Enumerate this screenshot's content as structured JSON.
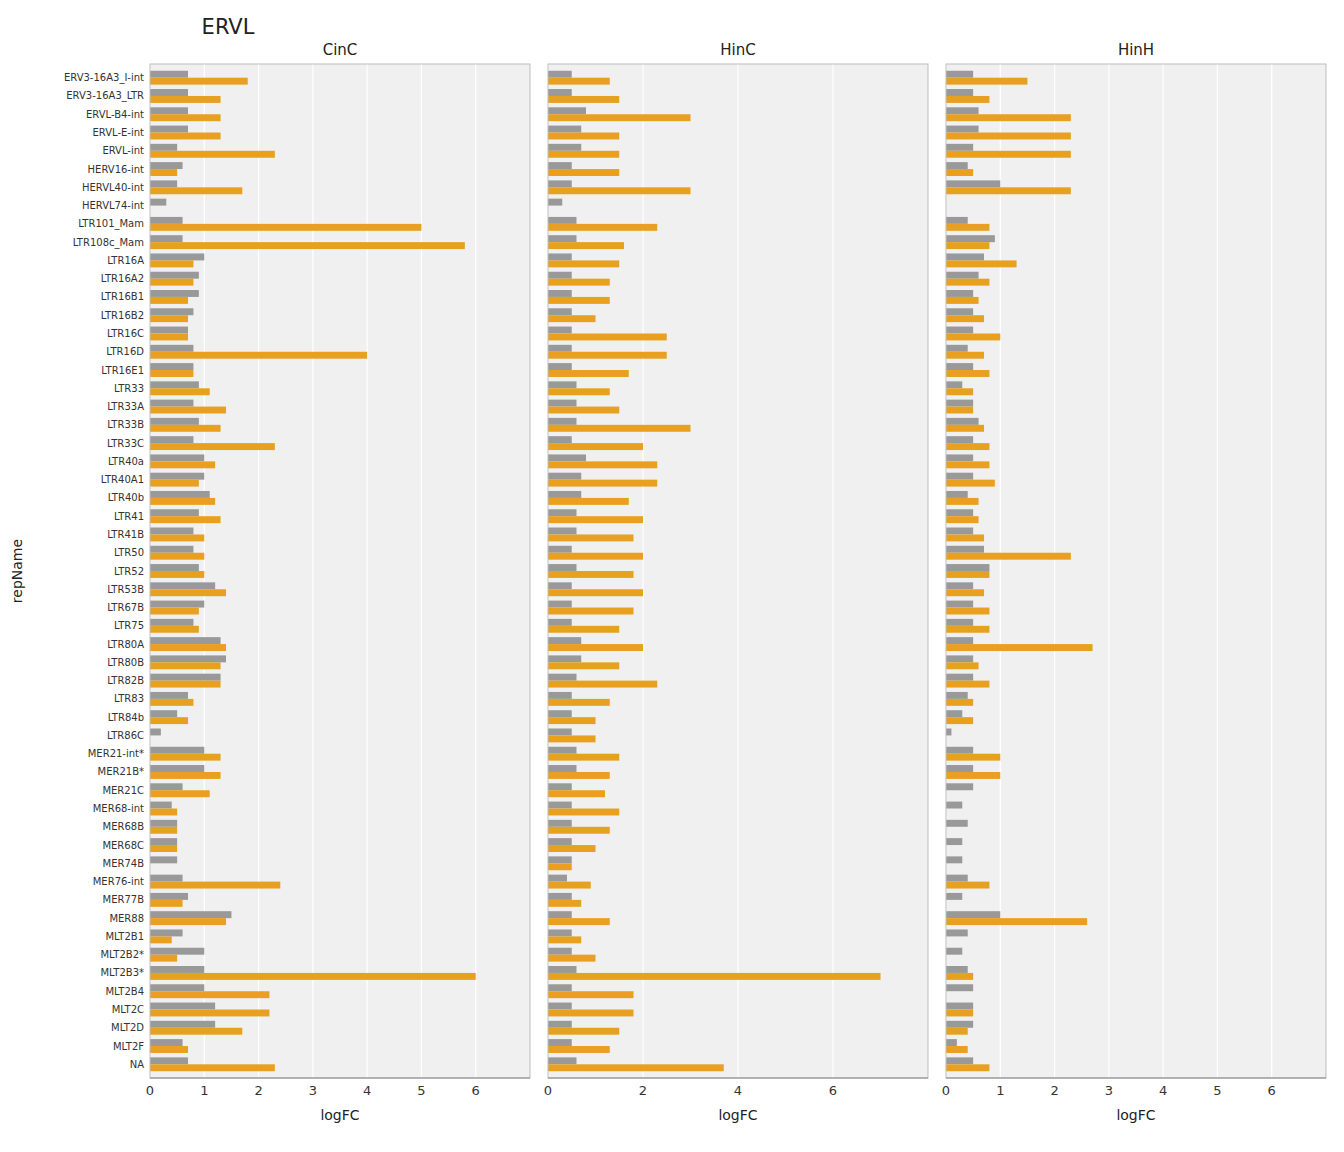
{
  "title": "ERVL",
  "chart_data": [
    {
      "type": "bar",
      "orientation": "horizontal",
      "title": "CinC",
      "x_label": "logFC",
      "y_label": "repName",
      "categories": [
        "NA",
        "MLT2F",
        "MLT2D",
        "MLT2C",
        "MLT2B4",
        "MLT2B3*",
        "MLT2B2*",
        "MLT2B1",
        "MER88",
        "MER77B",
        "MER76-int",
        "MER74B",
        "MER68C",
        "MER68B",
        "MER68-int",
        "MER21C",
        "MER21B*",
        "MER21-int*",
        "LTR86C",
        "LTR84b",
        "LTR83",
        "LTR82B",
        "LTR80B",
        "LTR80A",
        "LTR75",
        "LTR67B",
        "LTR53B",
        "LTR52",
        "LTR50",
        "LTR41B",
        "LTR41",
        "LTR40b",
        "LTR40A1",
        "LTR40a",
        "LTR33C",
        "LTR33B",
        "LTR33A",
        "LTR33",
        "LTR16E1",
        "LTR16D",
        "LTR16C",
        "LTR16B2",
        "LTR16B1",
        "LTR16A2",
        "LTR16A",
        "LTR108c_Mam",
        "LTR101_Mam",
        "HERVL74-int",
        "HERVL40-int",
        "HERV16-int",
        "ERVL-int",
        "ERVL-E-int",
        "ERVL-B4-int",
        "ERV3-16A3_LTR",
        "ERV3-16A3_I-int"
      ],
      "series": [
        {
          "color": "#999999",
          "values": [
            0.7,
            0.6,
            1.2,
            1.2,
            1.0,
            1.0,
            1.0,
            0.6,
            1.5,
            0.7,
            0.6,
            0.5,
            0.5,
            0.5,
            0.4,
            0.6,
            1.0,
            1.0,
            0.2,
            0.5,
            0.7,
            1.3,
            1.4,
            1.3,
            0.8,
            1.0,
            1.2,
            0.9,
            0.8,
            0.8,
            0.9,
            1.1,
            1.0,
            1.0,
            0.8,
            0.9,
            0.8,
            0.9,
            0.8,
            0.8,
            0.7,
            0.8,
            0.9,
            0.9,
            1.0,
            0.6,
            0.6,
            0.3,
            0.5,
            0.6,
            0.5,
            0.7,
            0.7,
            0.7,
            0.7
          ]
        },
        {
          "color": "#E8A020",
          "values": [
            2.3,
            0.7,
            1.7,
            2.2,
            2.2,
            6.0,
            0.5,
            0.4,
            1.4,
            0.6,
            2.4,
            0.0,
            0.5,
            0.5,
            0.5,
            1.1,
            1.3,
            1.3,
            0.0,
            0.7,
            0.8,
            1.3,
            1.3,
            1.4,
            0.9,
            0.9,
            1.4,
            1.0,
            1.0,
            1.0,
            1.3,
            1.2,
            0.9,
            1.2,
            2.3,
            1.3,
            1.4,
            1.1,
            0.8,
            4.0,
            0.7,
            0.7,
            0.7,
            0.8,
            0.8,
            5.8,
            5.0,
            0.0,
            1.7,
            0.5,
            2.3,
            1.3,
            1.3,
            1.3,
            1.8
          ]
        }
      ],
      "xlim": [
        0,
        7
      ],
      "xticks": [
        0,
        1,
        2,
        3,
        4,
        5,
        6
      ],
      "grid": true
    },
    {
      "type": "bar",
      "orientation": "horizontal",
      "title": "HinC",
      "x_label": "logFC",
      "tick_labels": "x",
      "categories": [
        "NA",
        "MLT2F",
        "MLT2D",
        "MLT2C",
        "MLT2B4",
        "MLT2B3*",
        "MLT2B2*",
        "MLT2B1",
        "MER88",
        "MER77B",
        "MER76-int",
        "MER74B",
        "MER68C",
        "MER68B",
        "MER68-int",
        "MER21C",
        "MER21B*",
        "MER21-int*",
        "LTR86C",
        "LTR84b",
        "LTR83",
        "LTR82B",
        "LTR80B",
        "LTR80A",
        "LTR75",
        "LTR67B",
        "LTR53B",
        "LTR52",
        "LTR50",
        "LTR41B",
        "LTR41",
        "LTR40b",
        "LTR40A1",
        "LTR40a",
        "LTR33C",
        "LTR33B",
        "LTR33A",
        "LTR33",
        "LTR16E1",
        "LTR16D",
        "LTR16C",
        "LTR16B2",
        "LTR16B1",
        "LTR16A2",
        "LTR16A",
        "LTR108c_Mam",
        "LTR101_Mam",
        "HERVL74-int",
        "HERVL40-int",
        "HERV16-int",
        "ERVL-int",
        "ERVL-E-int",
        "ERVL-B4-int",
        "ERV3-16A3_LTR",
        "ERV3-16A3_I-int"
      ],
      "series": [
        {
          "color": "#999999",
          "values": [
            0.6,
            0.5,
            0.5,
            0.5,
            0.5,
            0.6,
            0.5,
            0.5,
            0.5,
            0.5,
            0.4,
            0.5,
            0.5,
            0.5,
            0.5,
            0.5,
            0.6,
            0.6,
            0.5,
            0.5,
            0.5,
            0.6,
            0.7,
            0.7,
            0.5,
            0.5,
            0.5,
            0.6,
            0.5,
            0.6,
            0.6,
            0.7,
            0.7,
            0.8,
            0.5,
            0.6,
            0.6,
            0.6,
            0.5,
            0.5,
            0.5,
            0.5,
            0.5,
            0.5,
            0.5,
            0.6,
            0.6,
            0.3,
            0.5,
            0.5,
            0.7,
            0.7,
            0.8,
            0.5,
            0.5
          ]
        },
        {
          "color": "#E8A020",
          "values": [
            3.7,
            1.3,
            1.5,
            1.8,
            1.8,
            7.0,
            1.0,
            0.7,
            1.3,
            0.7,
            0.9,
            0.5,
            1.0,
            1.3,
            1.5,
            1.2,
            1.3,
            1.5,
            1.0,
            1.0,
            1.3,
            2.3,
            1.5,
            2.0,
            1.5,
            1.8,
            2.0,
            1.8,
            2.0,
            1.8,
            2.0,
            1.7,
            2.3,
            2.3,
            2.0,
            3.0,
            1.5,
            1.3,
            1.7,
            2.5,
            2.5,
            1.0,
            1.3,
            1.3,
            1.5,
            1.6,
            2.3,
            0.0,
            3.0,
            1.5,
            1.5,
            1.5,
            3.0,
            1.5,
            1.3
          ]
        }
      ],
      "xlim": [
        0,
        8
      ],
      "xticks": [
        0,
        2,
        4,
        6
      ],
      "grid": true
    },
    {
      "type": "bar",
      "orientation": "horizontal",
      "title": "HinH",
      "x_label": "logFC",
      "tick_labels": "x",
      "categories": [
        "NA",
        "MLT2F",
        "MLT2D",
        "MLT2C",
        "MLT2B4",
        "MLT2B3*",
        "MLT2B2*",
        "MLT2B1",
        "MER88",
        "MER77B",
        "MER76-int",
        "MER74B",
        "MER68C",
        "MER68B",
        "MER68-int",
        "MER21C",
        "MER21B*",
        "MER21-int*",
        "LTR86C",
        "LTR84b",
        "LTR83",
        "LTR82B",
        "LTR80B",
        "LTR80A",
        "LTR75",
        "LTR67B",
        "LTR53B",
        "LTR52",
        "LTR50",
        "LTR41B",
        "LTR41",
        "LTR40b",
        "LTR40A1",
        "LTR40a",
        "LTR33C",
        "LTR33B",
        "LTR33A",
        "LTR33",
        "LTR16E1",
        "LTR16D",
        "LTR16C",
        "LTR16B2",
        "LTR16B1",
        "LTR16A2",
        "LTR16A",
        "LTR108c_Mam",
        "LTR101_Mam",
        "HERVL74-int",
        "HERVL40-int",
        "HERV16-int",
        "ERVL-int",
        "ERVL-E-int",
        "ERVL-B4-int",
        "ERV3-16A3_LTR",
        "ERV3-16A3_I-int"
      ],
      "series": [
        {
          "color": "#999999",
          "values": [
            0.5,
            0.2,
            0.5,
            0.5,
            0.5,
            0.4,
            0.3,
            0.4,
            1.0,
            0.3,
            0.4,
            0.3,
            0.3,
            0.4,
            0.3,
            0.5,
            0.5,
            0.5,
            0.1,
            0.3,
            0.4,
            0.5,
            0.5,
            0.5,
            0.5,
            0.5,
            0.5,
            0.8,
            0.7,
            0.5,
            0.5,
            0.4,
            0.5,
            0.5,
            0.5,
            0.6,
            0.5,
            0.3,
            0.5,
            0.4,
            0.5,
            0.5,
            0.5,
            0.6,
            0.7,
            0.9,
            0.4,
            0.0,
            1.0,
            0.4,
            0.5,
            0.6,
            0.6,
            0.5,
            0.5
          ]
        },
        {
          "color": "#E8A020",
          "values": [
            0.8,
            0.4,
            0.4,
            0.5,
            0.0,
            0.5,
            0.0,
            0.0,
            2.6,
            0.0,
            0.8,
            0.0,
            0.0,
            0.0,
            0.0,
            0.0,
            1.0,
            1.0,
            0.0,
            0.5,
            0.5,
            0.8,
            0.6,
            2.7,
            0.8,
            0.8,
            0.7,
            0.8,
            2.3,
            0.7,
            0.6,
            0.6,
            0.9,
            0.8,
            0.8,
            0.7,
            0.5,
            0.5,
            0.8,
            0.7,
            1.0,
            0.7,
            0.6,
            0.8,
            1.3,
            0.8,
            0.8,
            0.0,
            2.3,
            0.5,
            2.3,
            2.3,
            2.3,
            0.8,
            1.5
          ]
        }
      ],
      "xlim": [
        0,
        7
      ],
      "xticks": [
        0,
        1,
        2,
        3,
        4,
        5,
        6
      ],
      "grid": true
    }
  ]
}
